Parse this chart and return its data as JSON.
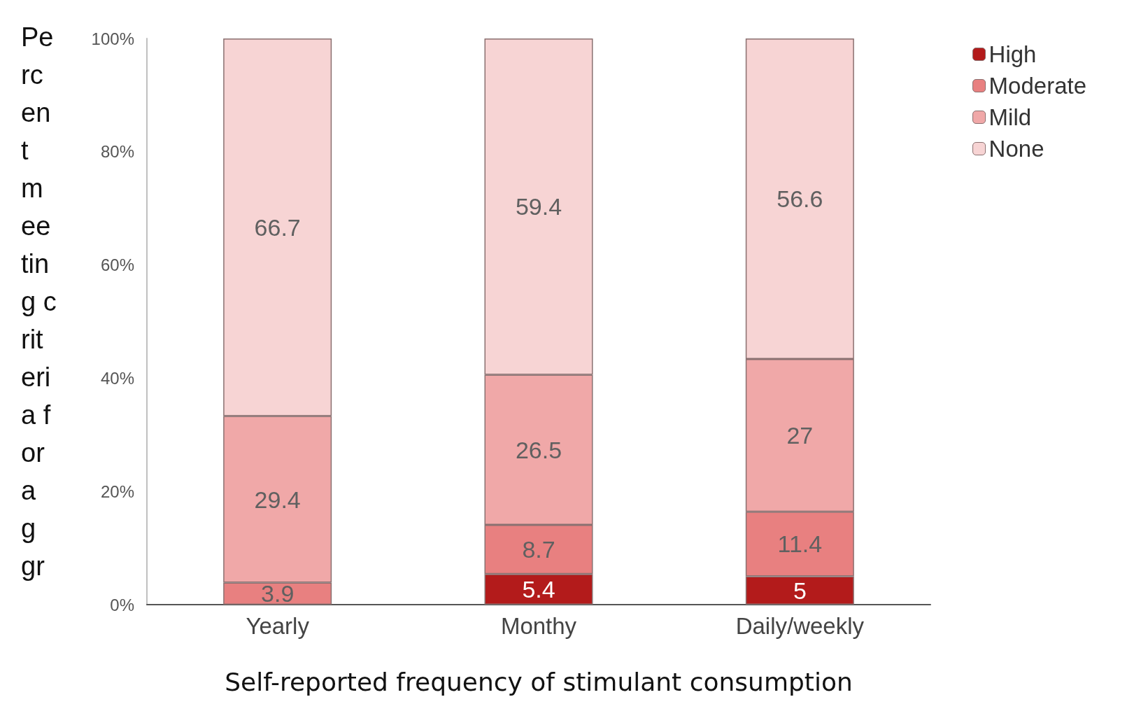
{
  "chart_data": {
    "type": "bar",
    "stacked": true,
    "xlabel": "Self-reported frequency of stimulant consumption",
    "ylabel": "Percent meeting criteria for a g gr",
    "categories": [
      "Yearly",
      "Monthy",
      "Daily/weekly"
    ],
    "series": [
      {
        "name": "High",
        "color": "#b31b1b",
        "values": [
          null,
          5.4,
          5
        ]
      },
      {
        "name": "Moderate",
        "color": "#e88080",
        "values": [
          3.9,
          8.7,
          11.4
        ]
      },
      {
        "name": "Mild",
        "color": "#f0a8a8",
        "values": [
          29.4,
          26.5,
          27
        ]
      },
      {
        "name": "None",
        "color": "#f7d4d4",
        "values": [
          66.7,
          59.4,
          56.6
        ]
      }
    ],
    "ylim": [
      0,
      100
    ],
    "yticks": [
      {
        "value": 0,
        "label": "0%"
      },
      {
        "value": 20,
        "label": "20%"
      },
      {
        "value": 40,
        "label": "40%"
      },
      {
        "value": 60,
        "label": "60%"
      },
      {
        "value": 80,
        "label": "80%"
      },
      {
        "value": 100,
        "label": "100%"
      }
    ],
    "data_labels": true,
    "legend": "top right",
    "grid": false
  }
}
